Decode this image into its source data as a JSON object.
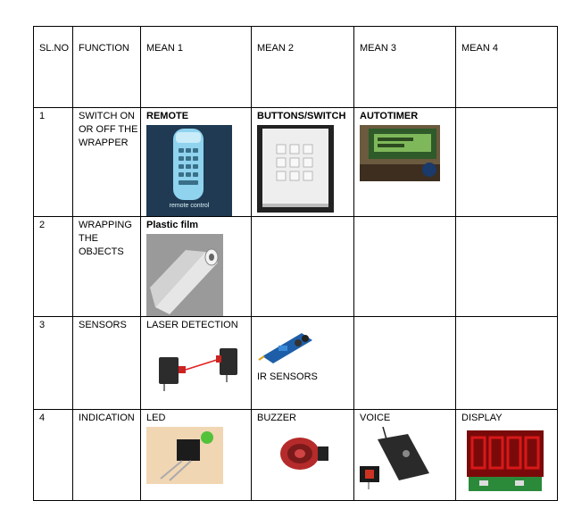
{
  "headers": [
    "SL.NO",
    "FUNCTION",
    "MEAN 1",
    "MEAN 2",
    "MEAN 3",
    "MEAN 4"
  ],
  "rows": [
    {
      "no": "1",
      "function": "SWITCH ON OR OFF THE WRAPPER",
      "means": [
        {
          "label": "REMOTE",
          "image": "remote-control-image",
          "bold": true
        },
        {
          "label": "BUTTONS/SWITCH",
          "image": "keypad-switch-image",
          "bold": true
        },
        {
          "label": "AUTOTIMER",
          "image": "lcd-timer-image",
          "bold": true
        },
        {
          "label": "",
          "image": ""
        }
      ]
    },
    {
      "no": "2",
      "function": "WRAPPING THE OBJECTS",
      "means": [
        {
          "label": "Plastic film",
          "image": "plastic-film-roll-image",
          "bold": true
        },
        {
          "label": "",
          "image": ""
        },
        {
          "label": "",
          "image": ""
        },
        {
          "label": "",
          "image": ""
        }
      ]
    },
    {
      "no": "3",
      "function": "SENSORS",
      "means": [
        {
          "label": "LASER DETECTION",
          "image": "laser-sensor-image"
        },
        {
          "label": "IR SENSORS",
          "image": "ir-sensor-module-image"
        },
        {
          "label": "",
          "image": ""
        },
        {
          "label": "",
          "image": ""
        }
      ]
    },
    {
      "no": "4",
      "function": "INDICATION",
      "means": [
        {
          "label": "LED",
          "image": "led-image"
        },
        {
          "label": "BUZZER",
          "image": "buzzer-image"
        },
        {
          "label": "VOICE",
          "image": "voice-module-image"
        },
        {
          "label": "DISPLAY",
          "image": "seven-segment-display-image"
        }
      ]
    }
  ],
  "images": {
    "remote_overlay_text": "remote control"
  }
}
